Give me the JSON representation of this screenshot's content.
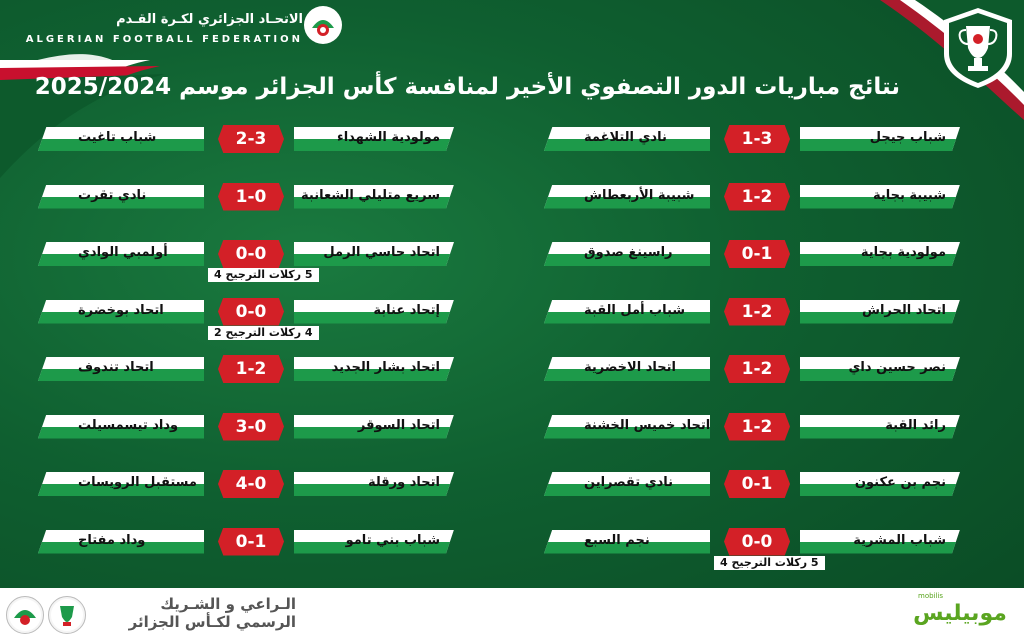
{
  "header": {
    "federation_ar": "الاتحـاد الجزائري لكـرة القـدم",
    "federation_en": "ALGERIAN FOOTBALL FEDERATION",
    "title": "نتائج مباريات الدور التصفوي الأخير لمنافسة كأس الجزائر موسم 2025/2024"
  },
  "left_matches": [
    {
      "home": "مولودية الشهداء",
      "score": "2-3",
      "away": "شباب تاغيت",
      "note": ""
    },
    {
      "home": "سريع متليلي الشعانبة",
      "score": "1-0",
      "away": "نادي تقرت",
      "note": ""
    },
    {
      "home": "اتحاد حاسي الرمل",
      "score": "0-0",
      "away": "أولمبي الوادي",
      "note": "5 ركلات الترجيح 4"
    },
    {
      "home": "إتحاد عنابة",
      "score": "0-0",
      "away": "اتحاد بوخضرة",
      "note": "4 ركلات الترجيح 2"
    },
    {
      "home": "اتحاد بشار الجديد",
      "score": "1-2",
      "away": "اتحاد تندوف",
      "note": ""
    },
    {
      "home": "اتحاد السوقر",
      "score": "3-0",
      "away": "وداد تيسمسيلت",
      "note": ""
    },
    {
      "home": "اتحاد ورقلة",
      "score": "4-0",
      "away": "مستقبل الرويسات",
      "note": ""
    },
    {
      "home": "شباب بني تامو",
      "score": "0-1",
      "away": "وداد مفتاح",
      "note": ""
    }
  ],
  "right_matches": [
    {
      "home": "شباب جيجل",
      "score": "1-3",
      "away": "نادي التلاغمة",
      "note": ""
    },
    {
      "home": "شبيبة بجاية",
      "score": "1-2",
      "away": "شبيبة الأربعطاش",
      "note": ""
    },
    {
      "home": "مولودية بجاية",
      "score": "0-1",
      "away": "راسينغ صدوق",
      "note": ""
    },
    {
      "home": "اتحاد الحراش",
      "score": "1-2",
      "away": "شباب أمل القبة",
      "note": ""
    },
    {
      "home": "نصر حسين داي",
      "score": "1-2",
      "away": "اتحاد الاخضرية",
      "note": ""
    },
    {
      "home": "رائد القبة",
      "score": "1-2",
      "away": "اتحاد خميس الخشنة",
      "note": ""
    },
    {
      "home": "نجم بن عكنون",
      "score": "0-1",
      "away": "نادي تقصراين",
      "note": ""
    },
    {
      "home": "شباب المشرية",
      "score": "0-0",
      "away": "نجم السبع",
      "note": "5 ركلات الترجيح 4"
    }
  ],
  "footer": {
    "sponsor_line1": "الـراعي و الشـريك",
    "sponsor_line2": "الرسمي لكـأس الجزائر",
    "mobilis_small": "mobilis",
    "mobilis": "موبيليس"
  },
  "colors": {
    "green": "#1d9a4a",
    "red": "#d32027",
    "bg": "#0d5a2c"
  }
}
